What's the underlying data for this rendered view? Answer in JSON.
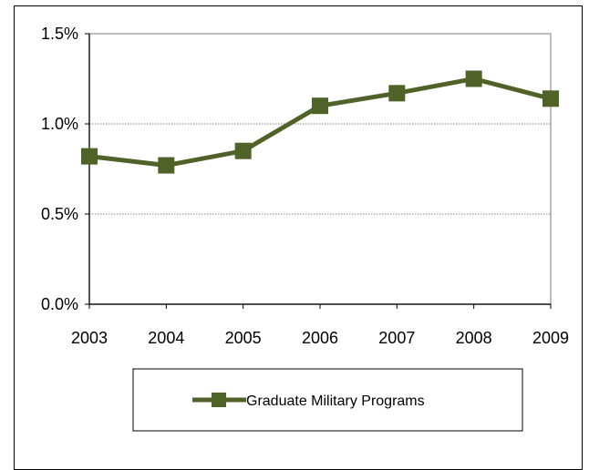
{
  "chart_data": {
    "type": "line",
    "title": "",
    "xlabel": "",
    "ylabel": "",
    "categories": [
      "2003",
      "2004",
      "2005",
      "2006",
      "2007",
      "2008",
      "2009"
    ],
    "series": [
      {
        "name": "Graduate Military Programs",
        "values": [
          0.82,
          0.77,
          0.85,
          1.1,
          1.17,
          1.25,
          1.14
        ],
        "color": "#4f6228",
        "marker": "square"
      }
    ],
    "ylim": [
      0,
      1.5
    ],
    "yticks": [
      0,
      0.5,
      1.0,
      1.5
    ],
    "ytick_labels": [
      "0.0%",
      "0.5%",
      "1.0%",
      "1.5%"
    ],
    "grid": "horizontal-dotted",
    "legend_position": "bottom"
  }
}
